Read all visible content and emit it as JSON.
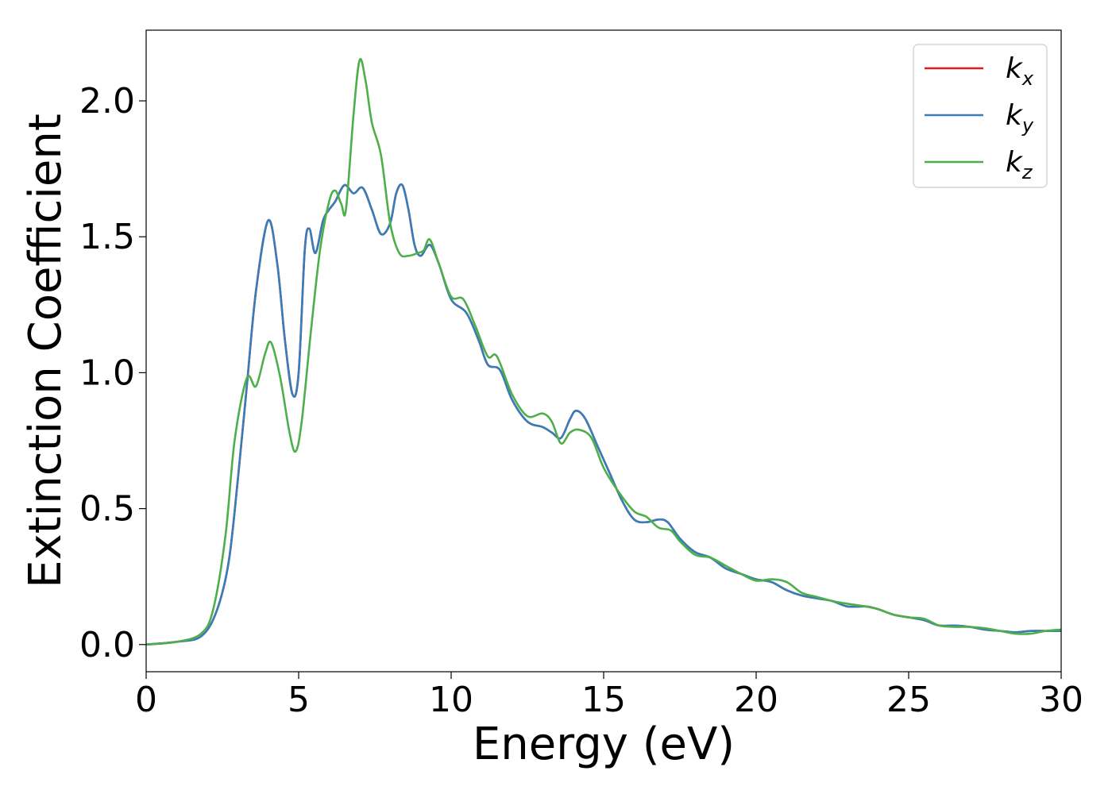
{
  "chart_data": {
    "type": "line",
    "title": "",
    "xlabel": "Energy (eV)",
    "ylabel": "Extinction Coefficient",
    "xlim": [
      0,
      30
    ],
    "ylim": [
      -0.1,
      2.26
    ],
    "x_ticks": [
      0,
      5,
      10,
      15,
      20,
      25,
      30
    ],
    "x_tick_labels": [
      "0",
      "5",
      "10",
      "15",
      "20",
      "25",
      "30"
    ],
    "y_ticks": [
      0.0,
      0.5,
      1.0,
      1.5,
      2.0
    ],
    "y_tick_labels": [
      "0.0",
      "0.5",
      "1.0",
      "1.5",
      "2.0"
    ],
    "grid": false,
    "legend_position": "top-right",
    "series": [
      {
        "name": "k_x",
        "legend_main": "k",
        "legend_sub": "x",
        "color": "#e41a1c",
        "points": [
          [
            0,
            0.0
          ],
          [
            1,
            0.01
          ],
          [
            1.8,
            0.03
          ],
          [
            2.3,
            0.12
          ],
          [
            2.7,
            0.3
          ],
          [
            3.0,
            0.6
          ],
          [
            3.3,
            0.95
          ],
          [
            3.6,
            1.3
          ],
          [
            4.0,
            1.56
          ],
          [
            4.3,
            1.4
          ],
          [
            4.55,
            1.12
          ],
          [
            4.8,
            0.92
          ],
          [
            5.0,
            1.0
          ],
          [
            5.2,
            1.45
          ],
          [
            5.35,
            1.53
          ],
          [
            5.55,
            1.44
          ],
          [
            5.8,
            1.56
          ],
          [
            6.0,
            1.6
          ],
          [
            6.2,
            1.63
          ],
          [
            6.5,
            1.69
          ],
          [
            6.8,
            1.66
          ],
          [
            7.1,
            1.68
          ],
          [
            7.4,
            1.6
          ],
          [
            7.7,
            1.51
          ],
          [
            8.0,
            1.55
          ],
          [
            8.2,
            1.66
          ],
          [
            8.4,
            1.69
          ],
          [
            8.6,
            1.6
          ],
          [
            8.8,
            1.47
          ],
          [
            9.0,
            1.43
          ],
          [
            9.3,
            1.47
          ],
          [
            9.6,
            1.4
          ],
          [
            10.0,
            1.27
          ],
          [
            10.5,
            1.22
          ],
          [
            10.9,
            1.12
          ],
          [
            11.2,
            1.03
          ],
          [
            11.6,
            1.01
          ],
          [
            12.0,
            0.9
          ],
          [
            12.5,
            0.82
          ],
          [
            13.0,
            0.8
          ],
          [
            13.3,
            0.78
          ],
          [
            13.6,
            0.76
          ],
          [
            13.9,
            0.83
          ],
          [
            14.1,
            0.86
          ],
          [
            14.4,
            0.83
          ],
          [
            14.8,
            0.73
          ],
          [
            15.2,
            0.63
          ],
          [
            15.6,
            0.53
          ],
          [
            16.0,
            0.46
          ],
          [
            16.4,
            0.45
          ],
          [
            16.8,
            0.46
          ],
          [
            17.1,
            0.45
          ],
          [
            17.5,
            0.39
          ],
          [
            18.0,
            0.34
          ],
          [
            18.5,
            0.32
          ],
          [
            19.0,
            0.28
          ],
          [
            19.5,
            0.26
          ],
          [
            20.0,
            0.24
          ],
          [
            20.5,
            0.23
          ],
          [
            21.0,
            0.2
          ],
          [
            21.5,
            0.18
          ],
          [
            22.0,
            0.17
          ],
          [
            22.5,
            0.16
          ],
          [
            23.0,
            0.14
          ],
          [
            23.6,
            0.14
          ],
          [
            24.0,
            0.13
          ],
          [
            24.5,
            0.11
          ],
          [
            25.0,
            0.1
          ],
          [
            25.5,
            0.09
          ],
          [
            26.0,
            0.07
          ],
          [
            26.5,
            0.07
          ],
          [
            27.0,
            0.065
          ],
          [
            27.5,
            0.055
          ],
          [
            28.0,
            0.05
          ],
          [
            28.5,
            0.045
          ],
          [
            29.0,
            0.05
          ],
          [
            29.5,
            0.05
          ],
          [
            30.0,
            0.05
          ]
        ]
      },
      {
        "name": "k_y",
        "legend_main": "k",
        "legend_sub": "y",
        "color": "#377eb8",
        "points": [
          [
            0,
            0.0
          ],
          [
            1,
            0.01
          ],
          [
            1.8,
            0.03
          ],
          [
            2.3,
            0.12
          ],
          [
            2.7,
            0.3
          ],
          [
            3.0,
            0.6
          ],
          [
            3.3,
            0.95
          ],
          [
            3.6,
            1.3
          ],
          [
            4.0,
            1.56
          ],
          [
            4.3,
            1.4
          ],
          [
            4.55,
            1.12
          ],
          [
            4.8,
            0.92
          ],
          [
            5.0,
            1.0
          ],
          [
            5.2,
            1.45
          ],
          [
            5.35,
            1.53
          ],
          [
            5.55,
            1.44
          ],
          [
            5.8,
            1.56
          ],
          [
            6.0,
            1.6
          ],
          [
            6.2,
            1.63
          ],
          [
            6.5,
            1.69
          ],
          [
            6.8,
            1.66
          ],
          [
            7.1,
            1.68
          ],
          [
            7.4,
            1.6
          ],
          [
            7.7,
            1.51
          ],
          [
            8.0,
            1.55
          ],
          [
            8.2,
            1.66
          ],
          [
            8.4,
            1.69
          ],
          [
            8.6,
            1.6
          ],
          [
            8.8,
            1.47
          ],
          [
            9.0,
            1.43
          ],
          [
            9.3,
            1.47
          ],
          [
            9.6,
            1.4
          ],
          [
            10.0,
            1.27
          ],
          [
            10.5,
            1.22
          ],
          [
            10.9,
            1.12
          ],
          [
            11.2,
            1.03
          ],
          [
            11.6,
            1.01
          ],
          [
            12.0,
            0.9
          ],
          [
            12.5,
            0.82
          ],
          [
            13.0,
            0.8
          ],
          [
            13.3,
            0.78
          ],
          [
            13.6,
            0.76
          ],
          [
            13.9,
            0.83
          ],
          [
            14.1,
            0.86
          ],
          [
            14.4,
            0.83
          ],
          [
            14.8,
            0.73
          ],
          [
            15.2,
            0.63
          ],
          [
            15.6,
            0.53
          ],
          [
            16.0,
            0.46
          ],
          [
            16.4,
            0.45
          ],
          [
            16.8,
            0.46
          ],
          [
            17.1,
            0.45
          ],
          [
            17.5,
            0.39
          ],
          [
            18.0,
            0.34
          ],
          [
            18.5,
            0.32
          ],
          [
            19.0,
            0.28
          ],
          [
            19.5,
            0.26
          ],
          [
            20.0,
            0.24
          ],
          [
            20.5,
            0.23
          ],
          [
            21.0,
            0.2
          ],
          [
            21.5,
            0.18
          ],
          [
            22.0,
            0.17
          ],
          [
            22.5,
            0.16
          ],
          [
            23.0,
            0.14
          ],
          [
            23.6,
            0.14
          ],
          [
            24.0,
            0.13
          ],
          [
            24.5,
            0.11
          ],
          [
            25.0,
            0.1
          ],
          [
            25.5,
            0.09
          ],
          [
            26.0,
            0.07
          ],
          [
            26.5,
            0.07
          ],
          [
            27.0,
            0.065
          ],
          [
            27.5,
            0.055
          ],
          [
            28.0,
            0.05
          ],
          [
            28.5,
            0.045
          ],
          [
            29.0,
            0.05
          ],
          [
            29.5,
            0.05
          ],
          [
            30.0,
            0.05
          ]
        ]
      },
      {
        "name": "k_z",
        "legend_main": "k",
        "legend_sub": "z",
        "color": "#4daf4a",
        "points": [
          [
            0,
            0.0
          ],
          [
            1,
            0.01
          ],
          [
            1.8,
            0.04
          ],
          [
            2.2,
            0.13
          ],
          [
            2.6,
            0.4
          ],
          [
            2.9,
            0.75
          ],
          [
            3.3,
            0.98
          ],
          [
            3.6,
            0.95
          ],
          [
            3.9,
            1.07
          ],
          [
            4.1,
            1.11
          ],
          [
            4.4,
            0.98
          ],
          [
            4.7,
            0.78
          ],
          [
            4.9,
            0.71
          ],
          [
            5.1,
            0.82
          ],
          [
            5.4,
            1.15
          ],
          [
            5.7,
            1.45
          ],
          [
            6.0,
            1.63
          ],
          [
            6.2,
            1.67
          ],
          [
            6.4,
            1.62
          ],
          [
            6.55,
            1.6
          ],
          [
            6.8,
            1.95
          ],
          [
            7.0,
            2.15
          ],
          [
            7.2,
            2.07
          ],
          [
            7.4,
            1.92
          ],
          [
            7.7,
            1.8
          ],
          [
            8.0,
            1.55
          ],
          [
            8.3,
            1.44
          ],
          [
            8.6,
            1.43
          ],
          [
            8.9,
            1.44
          ],
          [
            9.1,
            1.45
          ],
          [
            9.3,
            1.49
          ],
          [
            9.6,
            1.4
          ],
          [
            10.0,
            1.28
          ],
          [
            10.4,
            1.27
          ],
          [
            10.8,
            1.17
          ],
          [
            11.2,
            1.06
          ],
          [
            11.5,
            1.06
          ],
          [
            12.0,
            0.92
          ],
          [
            12.5,
            0.84
          ],
          [
            13.0,
            0.85
          ],
          [
            13.3,
            0.82
          ],
          [
            13.6,
            0.74
          ],
          [
            13.9,
            0.78
          ],
          [
            14.2,
            0.79
          ],
          [
            14.6,
            0.76
          ],
          [
            15.0,
            0.65
          ],
          [
            15.5,
            0.56
          ],
          [
            16.0,
            0.49
          ],
          [
            16.4,
            0.47
          ],
          [
            16.8,
            0.43
          ],
          [
            17.2,
            0.42
          ],
          [
            17.5,
            0.38
          ],
          [
            18.0,
            0.33
          ],
          [
            18.5,
            0.32
          ],
          [
            19.0,
            0.29
          ],
          [
            19.5,
            0.26
          ],
          [
            20.0,
            0.235
          ],
          [
            20.5,
            0.24
          ],
          [
            21.0,
            0.23
          ],
          [
            21.5,
            0.19
          ],
          [
            22.0,
            0.175
          ],
          [
            22.5,
            0.16
          ],
          [
            23.0,
            0.15
          ],
          [
            23.6,
            0.14
          ],
          [
            24.0,
            0.13
          ],
          [
            24.5,
            0.11
          ],
          [
            25.0,
            0.1
          ],
          [
            25.5,
            0.095
          ],
          [
            26.0,
            0.07
          ],
          [
            26.5,
            0.065
          ],
          [
            27.0,
            0.065
          ],
          [
            27.5,
            0.06
          ],
          [
            28.0,
            0.05
          ],
          [
            28.5,
            0.04
          ],
          [
            29.0,
            0.04
          ],
          [
            29.5,
            0.05
          ],
          [
            30.0,
            0.055
          ]
        ]
      }
    ]
  }
}
